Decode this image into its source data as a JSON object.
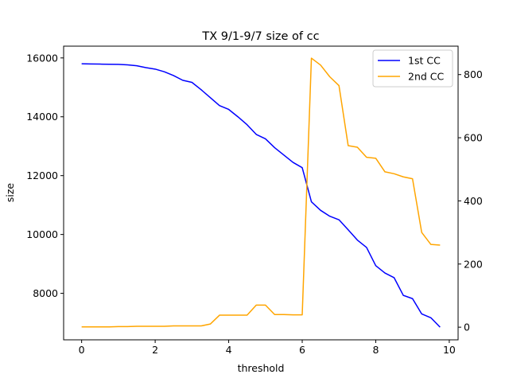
{
  "chart_data": {
    "type": "line",
    "title": "TX 9/1-9/7 size of cc",
    "xlabel": "threshold",
    "ylabel": "size",
    "y2label": "",
    "xlim": [
      -0.49,
      10.24
    ],
    "ylim": [
      6420,
      16400
    ],
    "y2lim": [
      -40,
      890
    ],
    "xticks": [
      0,
      2,
      4,
      6,
      8,
      10
    ],
    "yticks": [
      8000,
      10000,
      12000,
      14000,
      16000
    ],
    "y2ticks": [
      0,
      200,
      400,
      600,
      800
    ],
    "grid": false,
    "legend": "top-right",
    "x": [
      0,
      0.25,
      0.5,
      0.75,
      1.0,
      1.25,
      1.5,
      1.75,
      2.0,
      2.25,
      2.5,
      2.75,
      3.0,
      3.25,
      3.5,
      3.75,
      4.0,
      4.25,
      4.5,
      4.75,
      5.0,
      5.25,
      5.5,
      5.75,
      6.0,
      6.25,
      6.5,
      6.75,
      7.0,
      7.25,
      7.5,
      7.75,
      8.0,
      8.25,
      8.5,
      8.75,
      9.0,
      9.25,
      9.5,
      9.75
    ],
    "series": [
      {
        "name": "1st CC",
        "axis": "left",
        "color": "#0000ff",
        "values": [
          15800,
          15795,
          15790,
          15785,
          15780,
          15765,
          15735,
          15670,
          15620,
          15530,
          15400,
          15240,
          15170,
          14920,
          14650,
          14380,
          14250,
          14000,
          13730,
          13400,
          13250,
          12950,
          12700,
          12450,
          12270,
          11110,
          10820,
          10620,
          10500,
          10160,
          9810,
          9560,
          8940,
          8690,
          8530,
          7930,
          7820,
          7300,
          7170,
          6850
        ]
      },
      {
        "name": "2nd CC",
        "axis": "right",
        "color": "#ffa500",
        "values": [
          1,
          1,
          1,
          1,
          2,
          2,
          3,
          3,
          3,
          3,
          4,
          4,
          4,
          4,
          10,
          38,
          38,
          38,
          38,
          70,
          70,
          40,
          40,
          39,
          39,
          852,
          830,
          793,
          765,
          575,
          570,
          538,
          535,
          492,
          486,
          476,
          470,
          300,
          262,
          260
        ]
      }
    ]
  }
}
